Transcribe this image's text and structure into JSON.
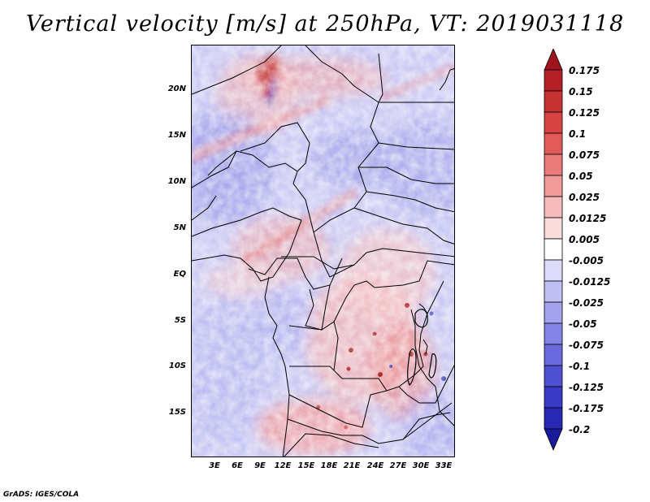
{
  "title": "Vertical velocity [m/s] at 250hPa, VT: 2019031118",
  "credit": "GrADS: IGES/COLA",
  "map": {
    "variable": "Vertical velocity",
    "units": "m/s",
    "level": "250hPa",
    "valid_time": "2019031118",
    "lat_labels": [
      "20N",
      "15N",
      "10N",
      "5N",
      "EQ",
      "5S",
      "10S",
      "15S"
    ],
    "lat_values": [
      20,
      15,
      10,
      5,
      0,
      -5,
      -10,
      -15
    ],
    "lon_labels": [
      "3E",
      "6E",
      "9E",
      "12E",
      "15E",
      "18E",
      "21E",
      "24E",
      "27E",
      "30E",
      "33E"
    ],
    "lon_values": [
      3,
      6,
      9,
      12,
      15,
      18,
      21,
      24,
      27,
      30,
      33
    ],
    "lat_range": [
      -19.7,
      24.8
    ],
    "lon_range": [
      0.3,
      34.7
    ]
  },
  "colorbar": {
    "labels": [
      "0.175",
      "0.15",
      "0.125",
      "0.1",
      "0.075",
      "0.05",
      "0.025",
      "0.0125",
      "0.005",
      "-0.005",
      "-0.0125",
      "-0.025",
      "-0.05",
      "-0.075",
      "-0.1",
      "-0.125",
      "-0.175",
      "-0.2"
    ],
    "colors": [
      "#a0141e",
      "#b52028",
      "#c73232",
      "#d84444",
      "#e25a5a",
      "#eb7a7a",
      "#f09a9a",
      "#f6bcbc",
      "#fbdcdc",
      "#ffffff",
      "#dcdcfa",
      "#c0c0f5",
      "#a2a2ee",
      "#8484e6",
      "#6a6adc",
      "#5050d2",
      "#3a3ac4",
      "#2828b2",
      "#1a1a9a"
    ]
  }
}
